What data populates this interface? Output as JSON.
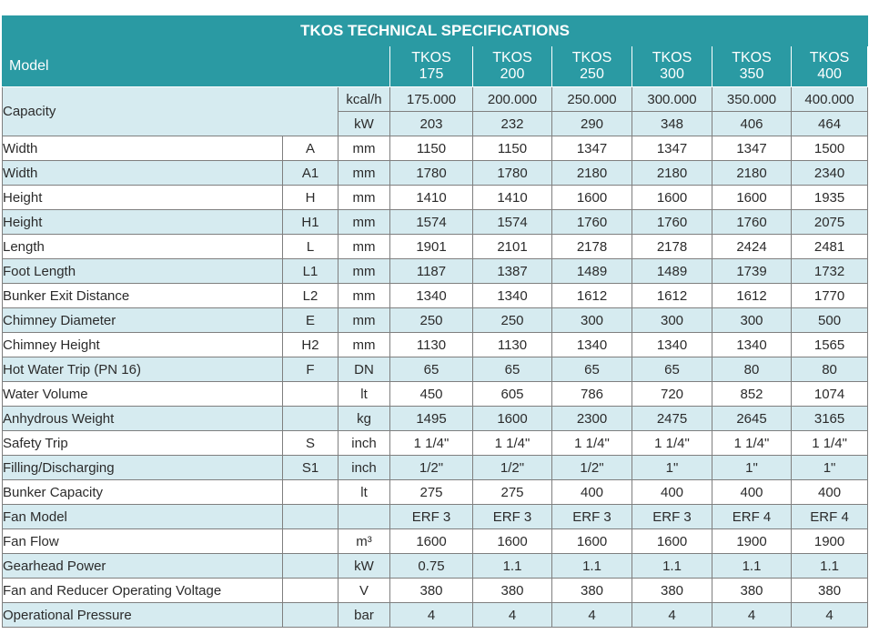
{
  "title": "TKOS TECHNICAL SPECIFICATIONS",
  "model_label": "Model",
  "models": [
    {
      "line1": "TKOS",
      "line2": "175"
    },
    {
      "line1": "TKOS",
      "line2": "200"
    },
    {
      "line1": "TKOS",
      "line2": "250"
    },
    {
      "line1": "TKOS",
      "line2": "300"
    },
    {
      "line1": "TKOS",
      "line2": "350"
    },
    {
      "line1": "TKOS",
      "line2": "400"
    }
  ],
  "capacity": {
    "label": "Capacity",
    "rows": [
      {
        "unit": "kcal/h",
        "values": [
          "175.000",
          "200.000",
          "250.000",
          "300.000",
          "350.000",
          "400.000"
        ]
      },
      {
        "unit": "kW",
        "values": [
          "203",
          "232",
          "290",
          "348",
          "406",
          "464"
        ]
      }
    ]
  },
  "rows": [
    {
      "name": "Width",
      "symbol": "A",
      "unit": "mm",
      "values": [
        "1150",
        "1150",
        "1347",
        "1347",
        "1347",
        "1500"
      ]
    },
    {
      "name": "Width",
      "symbol": "A1",
      "unit": "mm",
      "values": [
        "1780",
        "1780",
        "2180",
        "2180",
        "2180",
        "2340"
      ]
    },
    {
      "name": "Height",
      "symbol": "H",
      "unit": "mm",
      "values": [
        "1410",
        "1410",
        "1600",
        "1600",
        "1600",
        "1935"
      ]
    },
    {
      "name": "Height",
      "symbol": "H1",
      "unit": "mm",
      "values": [
        "1574",
        "1574",
        "1760",
        "1760",
        "1760",
        "2075"
      ]
    },
    {
      "name": "Length",
      "symbol": "L",
      "unit": "mm",
      "values": [
        "1901",
        "2101",
        "2178",
        "2178",
        "2424",
        "2481"
      ]
    },
    {
      "name": "Foot Length",
      "symbol": "L1",
      "unit": "mm",
      "values": [
        "1187",
        "1387",
        "1489",
        "1489",
        "1739",
        "1732"
      ]
    },
    {
      "name": "Bunker Exit Distance",
      "symbol": "L2",
      "unit": "mm",
      "values": [
        "1340",
        "1340",
        "1612",
        "1612",
        "1612",
        "1770"
      ]
    },
    {
      "name": "Chimney Diameter",
      "symbol": "E",
      "unit": "mm",
      "values": [
        "250",
        "250",
        "300",
        "300",
        "300",
        "500"
      ]
    },
    {
      "name": "Chimney Height",
      "symbol": "H2",
      "unit": "mm",
      "values": [
        "1130",
        "1130",
        "1340",
        "1340",
        "1340",
        "1565"
      ]
    },
    {
      "name": "Hot Water Trip (PN 16)",
      "symbol": "F",
      "unit": "DN",
      "values": [
        "65",
        "65",
        "65",
        "65",
        "80",
        "80"
      ]
    },
    {
      "name": "Water Volume",
      "symbol": "",
      "unit": "lt",
      "values": [
        "450",
        "605",
        "786",
        "720",
        "852",
        "1074"
      ]
    },
    {
      "name": "Anhydrous Weight",
      "symbol": "",
      "unit": "kg",
      "values": [
        "1495",
        "1600",
        "2300",
        "2475",
        "2645",
        "3165"
      ]
    },
    {
      "name": "Safety Trip",
      "symbol": "S",
      "unit": "inch",
      "values": [
        "1 1/4\"",
        "1 1/4\"",
        "1 1/4\"",
        "1 1/4\"",
        "1 1/4\"",
        "1 1/4\""
      ]
    },
    {
      "name": "Filling/Discharging",
      "symbol": "S1",
      "unit": "inch",
      "values": [
        "1/2\"",
        "1/2\"",
        "1/2\"",
        "1\"",
        "1\"",
        "1\""
      ]
    },
    {
      "name": "Bunker Capacity",
      "symbol": "",
      "unit": "lt",
      "values": [
        "275",
        "275",
        "400",
        "400",
        "400",
        "400"
      ]
    },
    {
      "name": "Fan Model",
      "symbol": "",
      "unit": "",
      "values": [
        "ERF 3",
        "ERF 3",
        "ERF 3",
        "ERF 3",
        "ERF 4",
        "ERF 4"
      ]
    },
    {
      "name": "Fan Flow",
      "symbol": "",
      "unit": "m³",
      "values": [
        "1600",
        "1600",
        "1600",
        "1600",
        "1900",
        "1900"
      ]
    },
    {
      "name": "Gearhead Power",
      "symbol": "",
      "unit": "kW",
      "values": [
        "0.75",
        "1.1",
        "1.1",
        "1.1",
        "1.1",
        "1.1"
      ]
    },
    {
      "name": "Fan and Reducer Operating Voltage",
      "symbol": "",
      "unit": "V",
      "values": [
        "380",
        "380",
        "380",
        "380",
        "380",
        "380"
      ]
    },
    {
      "name": "Operational Pressure",
      "symbol": "",
      "unit": "bar",
      "values": [
        "4",
        "4",
        "4",
        "4",
        "4",
        "4"
      ]
    }
  ],
  "colors": {
    "header": "#2a9aa3",
    "shade": "#d6ebf0",
    "border": "#7f7f7f"
  }
}
